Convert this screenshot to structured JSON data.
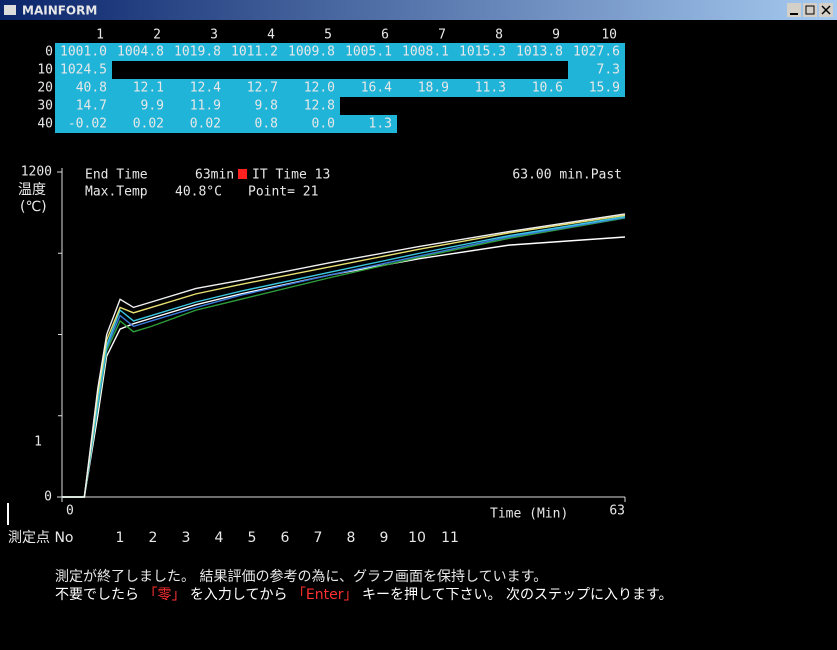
{
  "window": {
    "title": "MAINFORM"
  },
  "table": {
    "columns": [
      "1",
      "2",
      "3",
      "4",
      "5",
      "6",
      "7",
      "8",
      "9",
      "10"
    ],
    "rows": [
      {
        "label": "0",
        "cells": [
          "1001.0",
          "1004.8",
          "1019.8",
          "1011.2",
          "1009.8",
          "1005.1",
          "1008.1",
          "1015.3",
          "1013.8",
          "1027.6"
        ]
      },
      {
        "label": "10",
        "cells": [
          "1024.5",
          null,
          null,
          null,
          null,
          null,
          null,
          null,
          null,
          "7.3"
        ]
      },
      {
        "label": "20",
        "cells": [
          "40.8",
          "12.1",
          "12.4",
          "12.7",
          "12.0",
          "16.4",
          "18.9",
          "11.3",
          "10.6",
          "15.9"
        ]
      },
      {
        "label": "30",
        "cells": [
          "14.7",
          "9.9",
          "11.9",
          "9.8",
          "12.8",
          null,
          null,
          null,
          null,
          null
        ]
      },
      {
        "label": "40",
        "cells": [
          "-0.02",
          "0.02",
          "0.02",
          "0.8",
          "0.0",
          "1.3",
          null,
          null,
          null,
          null
        ]
      }
    ]
  },
  "info": {
    "end_time_label": "End Time",
    "end_time": "63min",
    "it_time": "IT Time 13",
    "max_temp_label": "Max.Temp",
    "max_temp": "40.8°C",
    "point": "Point= 21",
    "elapsed": "63.00 min.Past"
  },
  "graph": {
    "type": "line",
    "y_unit": [
      "温度",
      "(℃)"
    ],
    "y_marker": "1",
    "xlabel": "Time (Min)",
    "xlim": [
      0,
      63
    ],
    "ylim": [
      0,
      1200
    ],
    "xticks": [
      0,
      63
    ],
    "yticks": [
      0,
      1200
    ],
    "x": [
      0,
      2.5,
      4,
      5,
      6.5,
      8,
      10,
      15,
      20,
      30,
      40,
      50,
      63
    ],
    "series": [
      {
        "color": "#ffffff",
        "values": [
          0,
          0,
          300,
          520,
          620,
          640,
          660,
          710,
          750,
          820,
          880,
          930,
          960
        ]
      },
      {
        "color": "#2e9e3a",
        "values": [
          0,
          0,
          330,
          540,
          650,
          610,
          630,
          690,
          730,
          810,
          885,
          955,
          1030
        ]
      },
      {
        "color": "#3a7ad8",
        "values": [
          0,
          0,
          340,
          550,
          670,
          630,
          650,
          700,
          745,
          820,
          890,
          960,
          1032
        ]
      },
      {
        "color": "#3ac8e0",
        "values": [
          0,
          0,
          350,
          560,
          690,
          650,
          670,
          720,
          760,
          830,
          900,
          965,
          1035
        ]
      },
      {
        "color": "#e8e070",
        "values": [
          0,
          0,
          380,
          580,
          700,
          680,
          700,
          750,
          785,
          850,
          915,
          975,
          1040
        ]
      },
      {
        "color": "#f0f0f0",
        "values": [
          0,
          0,
          400,
          600,
          730,
          700,
          720,
          770,
          800,
          865,
          925,
          980,
          1045
        ]
      }
    ]
  },
  "legend": {
    "label": "測定点 No",
    "items": [
      {
        "text": "1",
        "color": "#3cb84a"
      },
      {
        "text": "2",
        "color": "#8ee0a0"
      },
      {
        "text": "3",
        "color": "#3ac8e0"
      },
      {
        "text": "4",
        "color": "#3a9ae8"
      },
      {
        "text": "5",
        "color": "#3ac8e0"
      },
      {
        "text": "6",
        "color": "#8ad0f0"
      },
      {
        "text": "7",
        "color": "#f0e070"
      },
      {
        "text": "8",
        "color": "#f0e070"
      },
      {
        "text": "9",
        "color": "#f0e070"
      },
      {
        "text": "10",
        "color": "#ffffff"
      },
      {
        "text": "11",
        "color": "#ffffff"
      }
    ]
  },
  "message": {
    "line1": "測定が終了しました。 結果評価の参考の為に、グラフ画面を保持しています。",
    "line2": [
      {
        "text": "不要でしたら ",
        "color": "#ffffff"
      },
      {
        "text": "「零」",
        "color": "#ff3030"
      },
      {
        "text": " を入力してから ",
        "color": "#ffffff"
      },
      {
        "text": "「Enter」",
        "color": "#ff3030"
      },
      {
        "text": " キーを押して下さい。 次のステップに入ります。",
        "color": "#ffffff"
      }
    ]
  }
}
